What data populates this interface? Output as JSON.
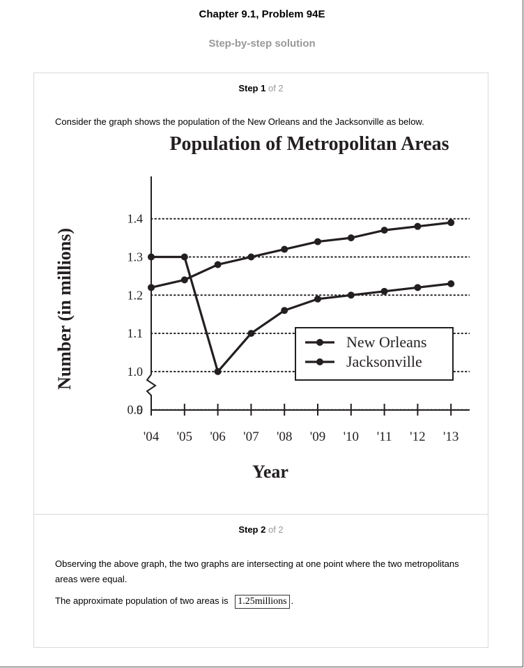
{
  "header": {
    "chapter_title": "Chapter 9.1, Problem 94E",
    "subtitle": "Step-by-step solution"
  },
  "step1": {
    "label": "Step 1",
    "of": "of 2",
    "text": "Consider the graph shows the population of the New Orleans and the Jacksonville as below."
  },
  "step2": {
    "label": "Step 2",
    "of": "of 2",
    "text1": "Observing the above graph, the two graphs are intersecting at one point where the two metropolitans areas were equal.",
    "text2_prefix": "The approximate population of two areas is",
    "answer_value": "1.25",
    "answer_unit": "millions",
    "text2_suffix": "."
  },
  "chart_data": {
    "type": "line",
    "title": "Population of Metropolitan Areas",
    "xlabel": "Year",
    "ylabel": "Number (in millions)",
    "categories": [
      "'04",
      "'05",
      "'06",
      "'07",
      "'08",
      "'09",
      "'10",
      "'11",
      "'12",
      "'13"
    ],
    "y_ticks": [
      "0",
      "0.9",
      "1.0",
      "1.1",
      "1.2",
      "1.3",
      "1.4"
    ],
    "ylim": [
      0.8,
      1.4
    ],
    "y_axis_break": true,
    "grid": "dotted horizontal",
    "legend_position": "lower-right",
    "series": [
      {
        "name": "New Orleans",
        "values": [
          1.3,
          1.3,
          1.0,
          1.1,
          1.16,
          1.19,
          1.2,
          1.21,
          1.22,
          1.23
        ]
      },
      {
        "name": "Jacksonville",
        "values": [
          1.22,
          1.24,
          1.28,
          1.3,
          1.32,
          1.34,
          1.35,
          1.37,
          1.38,
          1.39
        ]
      }
    ],
    "line_color": "#231f20"
  }
}
